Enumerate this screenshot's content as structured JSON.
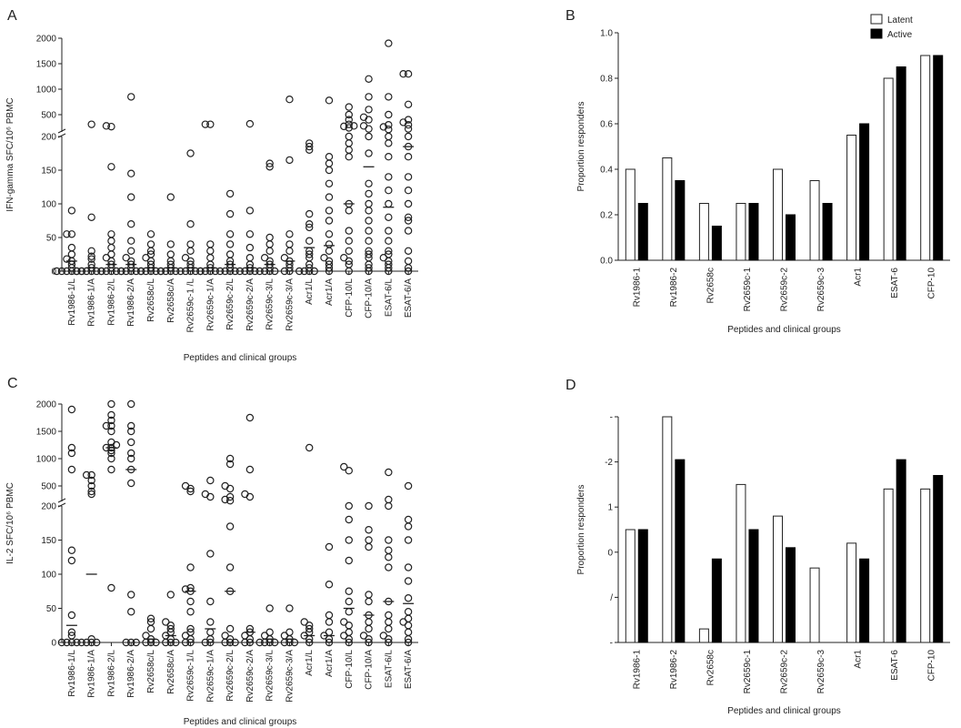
{
  "chart_data": [
    {
      "panel": "A",
      "type": "scatter",
      "ylabel": "IFN-gamma SFC/10⁶ PBMC",
      "xlabel": "Peptides and clinical groups",
      "yticks": [
        "0",
        "50",
        "100",
        "150",
        "200",
        "500",
        "1000",
        "1500",
        "2000"
      ],
      "categories": [
        "Rv1986-1/L",
        "Rv1986-1/A",
        "Rv1986-2/L",
        "Rv1986-2/A",
        "Rv2658c/L",
        "Rv2658c/A",
        "Rv2659c-1 /L",
        "Rv2659c-1/A",
        "Rv2659c-2/L",
        "Rv2659c-2/A",
        "Rv2659c-3/L",
        "Rv2659c-3/A",
        "Acr1/L",
        "Acr1/A",
        "CFP-10/L",
        "CFP-10/A",
        "ESAT-6/L",
        "ESAT-6/A"
      ],
      "points": [
        [
          0,
          0,
          0,
          0,
          0,
          0,
          5,
          10,
          15,
          18,
          25,
          35,
          55,
          55,
          90
        ],
        [
          0,
          0,
          0,
          0,
          0,
          0,
          5,
          10,
          18,
          22,
          30,
          80,
          310
        ],
        [
          0,
          0,
          0,
          0,
          0,
          5,
          10,
          15,
          20,
          25,
          35,
          45,
          55,
          155,
          265,
          280
        ],
        [
          0,
          0,
          0,
          0,
          0,
          5,
          10,
          15,
          20,
          30,
          45,
          70,
          110,
          145,
          850
        ],
        [
          0,
          0,
          0,
          0,
          0,
          5,
          10,
          15,
          20,
          25,
          30,
          40,
          55
        ],
        [
          0,
          0,
          0,
          0,
          5,
          10,
          15,
          25,
          40,
          110
        ],
        [
          0,
          0,
          0,
          0,
          0,
          5,
          10,
          15,
          20,
          30,
          40,
          70,
          175
        ],
        [
          0,
          0,
          0,
          0,
          5,
          10,
          20,
          30,
          40,
          310,
          310
        ],
        [
          0,
          0,
          0,
          0,
          5,
          10,
          15,
          25,
          40,
          55,
          85,
          115
        ],
        [
          0,
          0,
          0,
          0,
          5,
          10,
          20,
          35,
          55,
          90,
          320
        ],
        [
          0,
          0,
          0,
          0,
          5,
          10,
          15,
          20,
          30,
          40,
          50,
          155,
          160
        ],
        [
          0,
          0,
          5,
          10,
          15,
          20,
          30,
          40,
          55,
          165,
          800
        ],
        [
          0,
          0,
          0,
          0,
          5,
          10,
          20,
          25,
          30,
          45,
          65,
          70,
          85,
          190,
          185,
          180
        ],
        [
          0,
          5,
          10,
          15,
          20,
          30,
          40,
          55,
          75,
          90,
          110,
          130,
          150,
          160,
          170,
          780
        ],
        [
          0,
          10,
          15,
          20,
          30,
          45,
          60,
          90,
          100,
          170,
          180,
          190,
          200,
          240,
          270,
          280,
          310,
          400,
          500,
          650
        ],
        [
          0,
          5,
          10,
          20,
          25,
          30,
          45,
          60,
          75,
          90,
          100,
          115,
          130,
          175,
          200,
          220,
          280,
          400,
          450,
          600,
          850,
          1200
        ],
        [
          0,
          5,
          10,
          15,
          20,
          25,
          30,
          45,
          60,
          80,
          100,
          120,
          140,
          170,
          190,
          200,
          210,
          260,
          300,
          500,
          850,
          1900
        ],
        [
          0,
          5,
          15,
          30,
          60,
          75,
          80,
          100,
          120,
          140,
          170,
          185,
          200,
          220,
          300,
          350,
          400,
          700,
          1300,
          1300
        ]
      ],
      "medians": [
        15,
        5,
        10,
        10,
        5,
        5,
        5,
        5,
        10,
        5,
        10,
        15,
        35,
        38,
        100,
        155,
        95,
        185
      ]
    },
    {
      "panel": "B",
      "type": "bar",
      "ylabel": "Proportion responders",
      "xlabel": "Peptides and clinical groups",
      "categories": [
        "Rv1986-1",
        "Rv1986-2",
        "Rv2658c",
        "Rv2659c-1",
        "Rv2659c-2",
        "Rv2659c-3",
        "Acr1",
        "ESAT-6",
        "CFP-10"
      ],
      "series": [
        {
          "name": "Latent",
          "values": [
            0.4,
            0.45,
            0.25,
            0.25,
            0.4,
            0.35,
            0.55,
            0.8,
            0.9
          ]
        },
        {
          "name": "Active",
          "values": [
            0.25,
            0.35,
            0.15,
            0.25,
            0.2,
            0.25,
            0.6,
            0.85,
            0.9
          ]
        }
      ],
      "ylim": [
        0,
        1.0
      ],
      "yticks": [
        "0.0",
        "0.2",
        "0.4",
        "0.6",
        "0.8",
        "1.0"
      ],
      "legend": "top-right"
    },
    {
      "panel": "C",
      "type": "scatter",
      "ylabel": "IL-2 SFC/10⁶ PBMC",
      "xlabel": "Peptides and clinical groups",
      "yticks": [
        "0",
        "50",
        "100",
        "150",
        "200",
        "500",
        "1000",
        "1500",
        "2000"
      ],
      "categories": [
        "Rv1986-1/L",
        "Rv1986-1/A",
        "Rv1986-2/L",
        "Rv1986-2/A",
        "Rv2658c/L",
        "Rv2658c/A",
        "Rv2659c-1/L",
        "Rv2659c-1/A",
        "Rv2659c-2/L",
        "Rv2659c-2/A",
        "Rv2659c-3/L",
        "Rv2659c-3/A",
        "Acr1/L",
        "Acr1/A",
        "CFP-10/L",
        "CFP-10/A",
        "ESAT-6/L",
        "ESAT-6/A"
      ],
      "points": [
        [
          0,
          0,
          0,
          0,
          10,
          15,
          40,
          120,
          135,
          800,
          1100,
          1200,
          1900
        ],
        [
          0,
          0,
          0,
          0,
          5,
          350,
          400,
          500,
          600,
          700,
          700
        ],
        [
          80,
          800,
          1000,
          1100,
          1150,
          1200,
          1200,
          1250,
          1300,
          1500,
          1600,
          1600,
          1700,
          1800,
          2000
        ],
        [
          0,
          0,
          0,
          45,
          70,
          550,
          800,
          1000,
          1100,
          1300,
          1500,
          1600,
          2000
        ],
        [
          0,
          0,
          0,
          5,
          10,
          20,
          30,
          35
        ],
        [
          0,
          0,
          0,
          5,
          10,
          15,
          20,
          25,
          30,
          70
        ],
        [
          0,
          0,
          5,
          10,
          15,
          20,
          45,
          60,
          75,
          78,
          80,
          110,
          400,
          450,
          500
        ],
        [
          0,
          0,
          5,
          15,
          30,
          60,
          130,
          300,
          350,
          600
        ],
        [
          0,
          0,
          0,
          5,
          10,
          20,
          75,
          110,
          170,
          230,
          250,
          300,
          450,
          500,
          900,
          1000
        ],
        [
          0,
          0,
          5,
          10,
          15,
          20,
          300,
          350,
          800,
          1750
        ],
        [
          0,
          0,
          0,
          0,
          5,
          10,
          15,
          50
        ],
        [
          0,
          0,
          0,
          5,
          10,
          15,
          50
        ],
        [
          0,
          5,
          10,
          15,
          20,
          25,
          30,
          1200
        ],
        [
          0,
          5,
          10,
          15,
          30,
          40,
          85,
          140
        ],
        [
          0,
          5,
          10,
          15,
          25,
          30,
          45,
          60,
          75,
          120,
          150,
          180,
          200,
          780,
          850
        ],
        [
          0,
          5,
          10,
          20,
          30,
          40,
          60,
          70,
          140,
          150,
          165,
          200
        ],
        [
          0,
          5,
          10,
          20,
          30,
          40,
          60,
          110,
          125,
          135,
          150,
          200,
          250,
          750
        ],
        [
          0,
          5,
          15,
          25,
          30,
          35,
          45,
          65,
          90,
          110,
          150,
          170,
          180,
          500
        ]
      ],
      "medians": [
        25,
        100,
        1200,
        800,
        5,
        10,
        75,
        20,
        75,
        15,
        5,
        5,
        10,
        10,
        50,
        40,
        60,
        57
      ]
    },
    {
      "panel": "D",
      "type": "bar",
      "ylabel": "Proportion responders",
      "xlabel": "Peptides and clinical groups",
      "categories": [
        "Rv1986-1",
        "Rv1986-2",
        "Rv2658c",
        "Rv2659c-1",
        "Rv2659c-2",
        "Rv2659c-3",
        "Acr1",
        "ESAT-6",
        "CFP-10"
      ],
      "series": [
        {
          "name": "Latent",
          "values": [
            0.5,
            1.0,
            0.06,
            0.7,
            0.56,
            0.33,
            0.44,
            0.68,
            0.68
          ]
        },
        {
          "name": "Active",
          "values": [
            0.5,
            0.81,
            0.37,
            0.5,
            0.42,
            0.0,
            0.37,
            0.81,
            0.74
          ]
        }
      ],
      "ylim": [
        0,
        1.0
      ],
      "yticks": [
        "-",
        "/",
        "0",
        "1",
        "-2",
        "-"
      ]
    }
  ],
  "panels": {
    "A": {
      "letter": "A"
    },
    "B": {
      "letter": "B"
    },
    "C": {
      "letter": "C"
    },
    "D": {
      "letter": "D"
    }
  }
}
